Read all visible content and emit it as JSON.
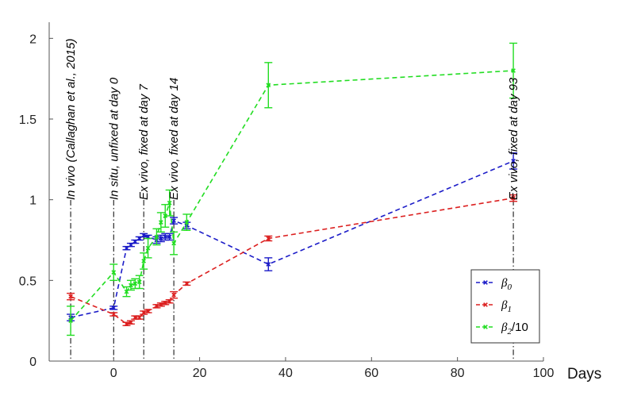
{
  "chart_data": {
    "type": "line",
    "title": "",
    "xlabel": "Days",
    "ylabel": "",
    "xlim": [
      -15,
      100
    ],
    "ylim": [
      0,
      2.1
    ],
    "xticks": [
      0,
      20,
      40,
      60,
      80,
      100
    ],
    "yticks": [
      0,
      0.5,
      1,
      1.5,
      2
    ],
    "xtick_labels": [
      "0",
      "20",
      "40",
      "60",
      "80",
      "100"
    ],
    "ytick_labels": [
      "0",
      "0.5",
      "1",
      "1.5",
      "2"
    ],
    "grid": false,
    "legend_position": "bottom-right",
    "series": [
      {
        "name": "β0",
        "legend": {
          "symbol": "β",
          "sub": "0",
          "suffix": ""
        },
        "color": "#1c1cc8",
        "marker": "x",
        "x": [
          -10,
          0,
          3,
          4,
          5,
          6,
          7,
          8,
          10,
          11,
          12,
          13,
          14,
          17,
          36,
          93
        ],
        "y": [
          0.27,
          0.33,
          0.7,
          0.72,
          0.74,
          0.76,
          0.78,
          0.77,
          0.75,
          0.76,
          0.77,
          0.77,
          0.87,
          0.84,
          0.6,
          1.24
        ],
        "err": [
          0.02,
          0.01,
          0.01,
          0.01,
          0.01,
          0.01,
          0.01,
          0.01,
          0.02,
          0.02,
          0.02,
          0.02,
          0.02,
          0.02,
          0.04,
          0.05
        ]
      },
      {
        "name": "β1",
        "legend": {
          "symbol": "β",
          "sub": "1",
          "suffix": ""
        },
        "color": "#dc2020",
        "marker": "x",
        "x": [
          -10,
          0,
          3,
          4,
          5,
          6,
          7,
          8,
          10,
          11,
          12,
          13,
          14,
          17,
          36,
          93
        ],
        "y": [
          0.4,
          0.29,
          0.23,
          0.24,
          0.27,
          0.27,
          0.3,
          0.31,
          0.34,
          0.35,
          0.36,
          0.37,
          0.41,
          0.48,
          0.76,
          1.01
        ],
        "err": [
          0.02,
          0.01,
          0.01,
          0.01,
          0.01,
          0.01,
          0.01,
          0.01,
          0.01,
          0.01,
          0.01,
          0.01,
          0.02,
          0.01,
          0.015,
          0.02
        ]
      },
      {
        "name": "β2/10",
        "legend": {
          "symbol": "β",
          "sub": "2",
          "suffix": "/10"
        },
        "color": "#22dd22",
        "marker": "x",
        "x": [
          -10,
          0,
          3,
          4,
          5,
          6,
          7,
          8,
          10,
          11,
          12,
          13,
          14,
          17,
          36,
          93
        ],
        "y": [
          0.25,
          0.55,
          0.43,
          0.47,
          0.48,
          0.49,
          0.62,
          0.7,
          0.77,
          0.86,
          0.9,
          0.98,
          0.73,
          0.86,
          1.71,
          1.8
        ],
        "err": [
          0.09,
          0.05,
          0.03,
          0.03,
          0.03,
          0.04,
          0.05,
          0.06,
          0.05,
          0.06,
          0.07,
          0.08,
          0.07,
          0.05,
          0.14,
          0.17
        ]
      }
    ],
    "annotations": [
      {
        "x": -10,
        "text": "In vivo (Callaghan et al., 2015)"
      },
      {
        "x": 0,
        "text": "In situ, unfixed at day 0"
      },
      {
        "x": 7,
        "text": "Ex vivo, fixed at day 7"
      },
      {
        "x": 14,
        "text": "Ex vivo, fixed at day 14"
      },
      {
        "x": 93,
        "text": "Ex vivo, fixed at day 93"
      }
    ]
  }
}
